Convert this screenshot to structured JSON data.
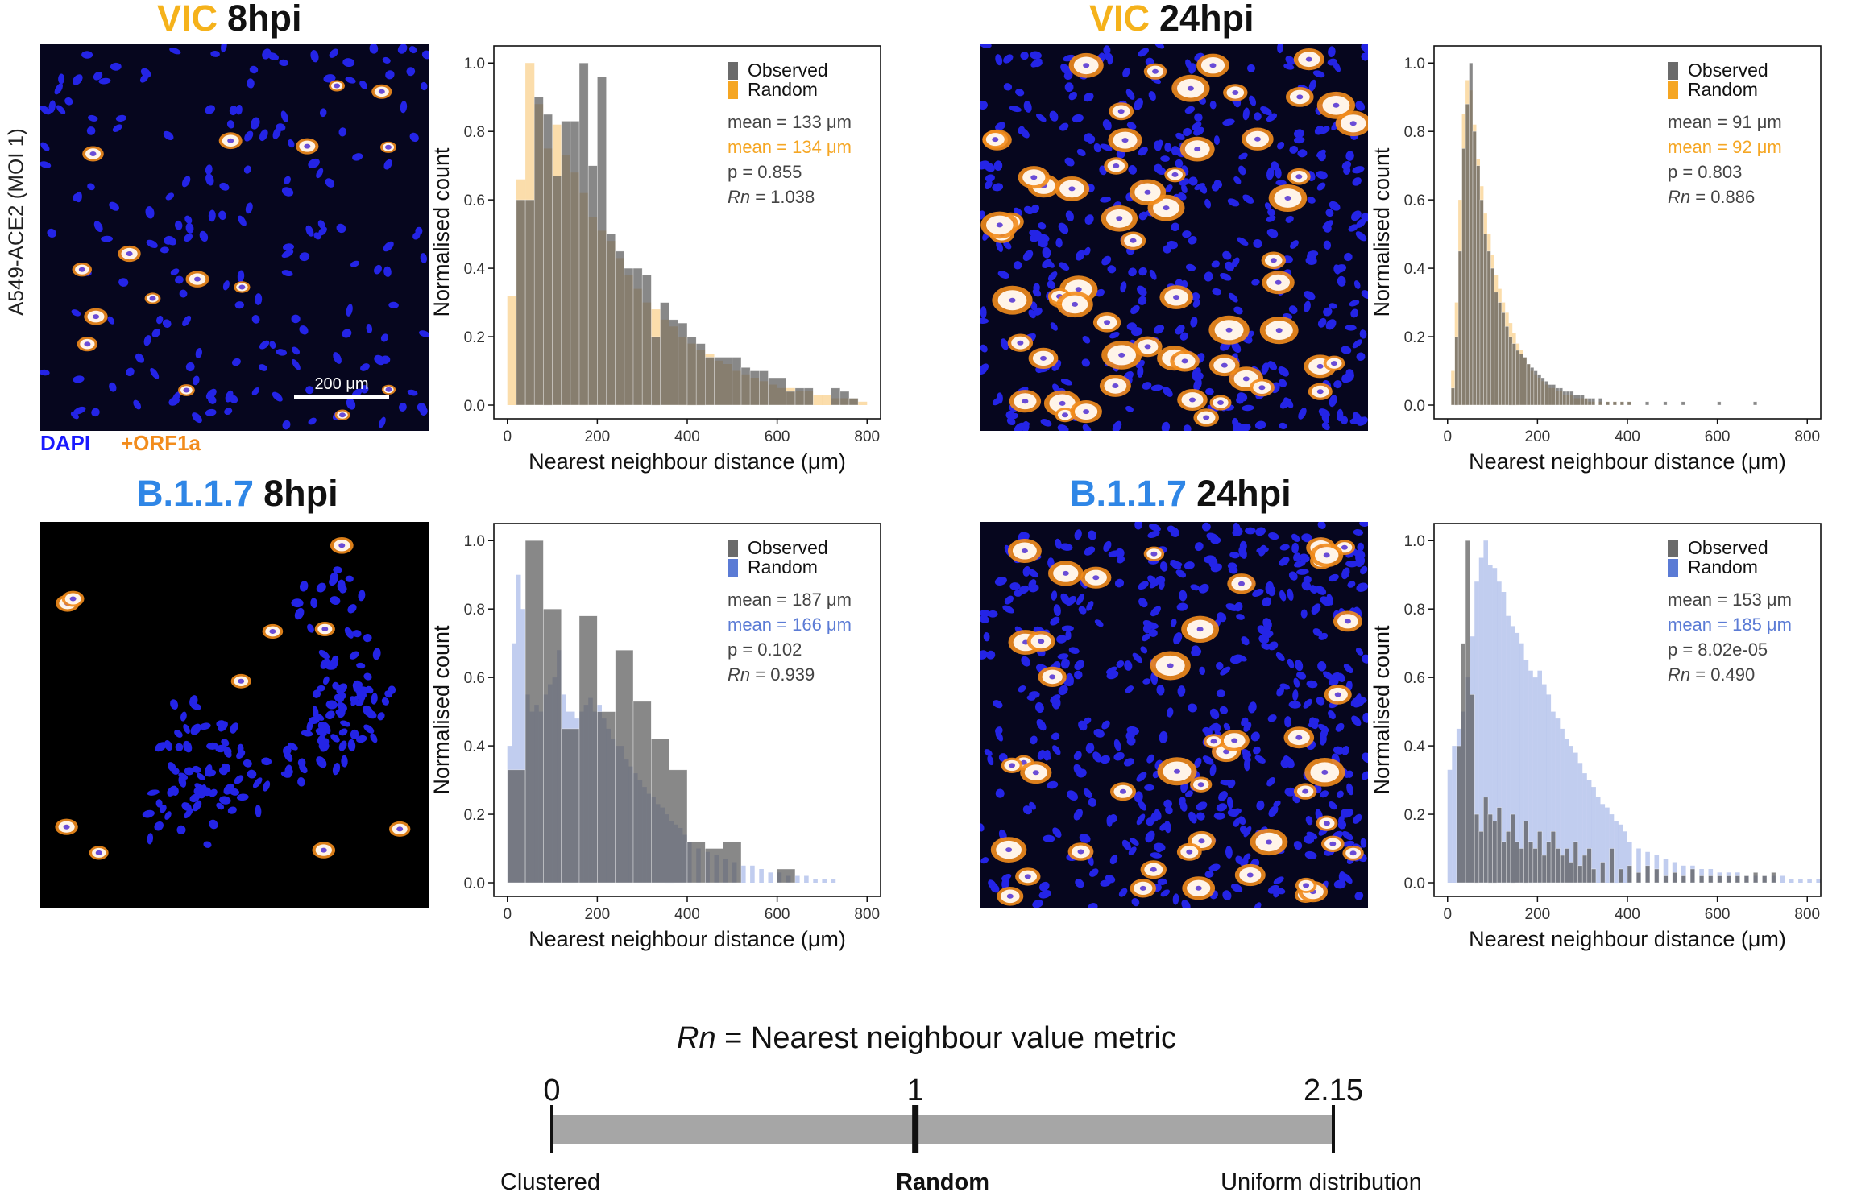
{
  "figure": {
    "row_label": "A549-ACE2 (MOI 1)",
    "scale_bar_label": "200 μm",
    "stains": [
      {
        "label": "DAPI",
        "color": "#1a1aff"
      },
      {
        "label": "+ORF1a",
        "color": "#f28c1c"
      }
    ],
    "colors": {
      "observed": "#6b6b6b",
      "random_vic": "#f5a623",
      "random_b117": "#5b7bd5",
      "vic": "#f5b21b",
      "b117": "#2f86e6",
      "micro_bg": "#05051a"
    }
  },
  "panels": [
    {
      "strain": "VIC",
      "time": "8hpi",
      "strain_color": "#f5b21b"
    },
    {
      "strain": "VIC",
      "time": "24hpi",
      "strain_color": "#f5b21b"
    },
    {
      "strain": "B.1.1.7",
      "time": "8hpi",
      "strain_color": "#2f86e6"
    },
    {
      "strain": "B.1.1.7",
      "time": "24hpi",
      "strain_color": "#2f86e6"
    }
  ],
  "chart_data": [
    {
      "type": "bar",
      "xlabel": "Nearest neighbour distance (μm)",
      "ylabel": "Normalised count",
      "xlim": [
        -30,
        830
      ],
      "ylim": [
        -0.04,
        1.05
      ],
      "xticks": [
        "0",
        "200",
        "400",
        "600",
        "800"
      ],
      "yticks": [
        "0.0",
        "0.2",
        "0.4",
        "0.6",
        "0.8",
        "1.0"
      ],
      "legend": [
        "Observed",
        "Random"
      ],
      "random_color": "#f5a623",
      "stats": [
        {
          "label": "mean",
          "value": "133",
          "unit": "μm",
          "color": "#444444"
        },
        {
          "label": "mean",
          "value": "134",
          "unit": "μm",
          "color": "#f5a623"
        },
        {
          "label": "p",
          "value": "0.855",
          "color": "#444444"
        },
        {
          "label": "Rn",
          "value": "1.038",
          "color": "#444444"
        }
      ],
      "series": [
        {
          "name": "Observed",
          "bin_width": 20,
          "x": [
            20,
            40,
            60,
            80,
            100,
            120,
            140,
            160,
            180,
            200,
            220,
            240,
            260,
            280,
            300,
            320,
            340,
            360,
            380,
            400,
            420,
            440,
            460,
            480,
            500,
            520,
            540,
            560,
            580,
            600,
            620,
            640,
            660,
            680,
            700,
            720,
            740,
            760,
            780
          ],
          "values": [
            0.6,
            0.6,
            0.9,
            0.85,
            0.67,
            0.83,
            0.83,
            1.0,
            0.7,
            0.96,
            0.5,
            0.45,
            0.4,
            0.4,
            0.38,
            0.2,
            0.3,
            0.25,
            0.24,
            0.2,
            0.18,
            0.14,
            0.14,
            0.14,
            0.14,
            0.11,
            0.1,
            0.1,
            0.08,
            0.08,
            0.04,
            0.05,
            0.05,
            0.0,
            0.0,
            0.05,
            0.04,
            0.02,
            0.0
          ]
        },
        {
          "name": "Random",
          "bin_width": 20,
          "x": [
            0,
            20,
            40,
            60,
            80,
            100,
            120,
            140,
            160,
            180,
            200,
            220,
            240,
            260,
            280,
            300,
            320,
            340,
            360,
            380,
            400,
            420,
            440,
            460,
            480,
            500,
            520,
            540,
            560,
            580,
            600,
            620,
            640,
            660,
            680,
            700,
            720,
            740,
            760,
            780
          ],
          "values": [
            0.32,
            0.66,
            1.0,
            0.88,
            0.75,
            0.82,
            0.73,
            0.68,
            0.62,
            0.55,
            0.51,
            0.48,
            0.43,
            0.38,
            0.34,
            0.3,
            0.28,
            0.25,
            0.23,
            0.2,
            0.18,
            0.16,
            0.15,
            0.13,
            0.12,
            0.1,
            0.09,
            0.08,
            0.07,
            0.06,
            0.05,
            0.05,
            0.04,
            0.04,
            0.03,
            0.03,
            0.02,
            0.02,
            0.02,
            0.01
          ]
        }
      ]
    },
    {
      "type": "bar",
      "xlabel": "Nearest neighbour distance (μm)",
      "ylabel": "Normalised count",
      "xlim": [
        -30,
        830
      ],
      "ylim": [
        -0.04,
        1.05
      ],
      "xticks": [
        "0",
        "200",
        "400",
        "600",
        "800"
      ],
      "yticks": [
        "0.0",
        "0.2",
        "0.4",
        "0.6",
        "0.8",
        "1.0"
      ],
      "legend": [
        "Observed",
        "Random"
      ],
      "random_color": "#f5a623",
      "stats": [
        {
          "label": "mean",
          "value": "91",
          "unit": "μm",
          "color": "#444444"
        },
        {
          "label": "mean",
          "value": "92",
          "unit": "μm",
          "color": "#f5a623"
        },
        {
          "label": "p",
          "value": "0.803",
          "color": "#444444"
        },
        {
          "label": "Rn",
          "value": "0.886",
          "color": "#444444"
        }
      ],
      "series": [
        {
          "name": "Observed",
          "bin_width": 8,
          "x": [
            8,
            16,
            24,
            32,
            40,
            48,
            56,
            64,
            72,
            80,
            88,
            96,
            104,
            112,
            120,
            128,
            136,
            144,
            152,
            160,
            168,
            176,
            184,
            192,
            200,
            208,
            216,
            224,
            232,
            240,
            248,
            256,
            264,
            272,
            280,
            288,
            296,
            304,
            312,
            320,
            336,
            352,
            368,
            384,
            400,
            440,
            480,
            520,
            600,
            680
          ],
          "values": [
            0.05,
            0.2,
            0.45,
            0.75,
            0.88,
            1.0,
            0.8,
            0.7,
            0.6,
            0.5,
            0.45,
            0.4,
            0.33,
            0.3,
            0.27,
            0.23,
            0.2,
            0.18,
            0.16,
            0.15,
            0.14,
            0.12,
            0.11,
            0.1,
            0.09,
            0.08,
            0.07,
            0.06,
            0.06,
            0.05,
            0.05,
            0.04,
            0.04,
            0.04,
            0.03,
            0.03,
            0.03,
            0.02,
            0.02,
            0.02,
            0.02,
            0.01,
            0.01,
            0.01,
            0.01,
            0.01,
            0.01,
            0.01,
            0.01,
            0.01
          ]
        },
        {
          "name": "Random",
          "bin_width": 8,
          "x": [
            8,
            16,
            24,
            32,
            40,
            48,
            56,
            64,
            72,
            80,
            88,
            96,
            104,
            112,
            120,
            128,
            136,
            144,
            152,
            160,
            168,
            176,
            184,
            192,
            200,
            208,
            216,
            224,
            232,
            240,
            248,
            256,
            264,
            272,
            280,
            288,
            296,
            304,
            312,
            320,
            336,
            352,
            368,
            384,
            400
          ],
          "values": [
            0.1,
            0.3,
            0.6,
            0.85,
            0.95,
            0.92,
            0.82,
            0.72,
            0.64,
            0.56,
            0.5,
            0.44,
            0.38,
            0.34,
            0.3,
            0.27,
            0.24,
            0.21,
            0.18,
            0.16,
            0.14,
            0.12,
            0.1,
            0.09,
            0.08,
            0.07,
            0.06,
            0.05,
            0.05,
            0.04,
            0.04,
            0.03,
            0.03,
            0.03,
            0.02,
            0.02,
            0.02,
            0.02,
            0.01,
            0.01,
            0.01,
            0.01,
            0.01,
            0.01,
            0.01
          ]
        }
      ]
    },
    {
      "type": "bar",
      "xlabel": "Nearest neighbour distance (μm)",
      "ylabel": "Normalised count",
      "xlim": [
        -30,
        830
      ],
      "ylim": [
        -0.04,
        1.05
      ],
      "xticks": [
        "0",
        "200",
        "400",
        "600",
        "800"
      ],
      "yticks": [
        "0.0",
        "0.2",
        "0.4",
        "0.6",
        "0.8",
        "1.0"
      ],
      "legend": [
        "Observed",
        "Random"
      ],
      "random_color": "#5b7bd5",
      "stats": [
        {
          "label": "mean",
          "value": "187",
          "unit": "μm",
          "color": "#444444"
        },
        {
          "label": "mean",
          "value": "166",
          "unit": "μm",
          "color": "#5b7bd5"
        },
        {
          "label": "p",
          "value": "0.102",
          "color": "#444444"
        },
        {
          "label": "Rn",
          "value": "0.939",
          "color": "#444444"
        }
      ],
      "series": [
        {
          "name": "Observed",
          "bin_width": 40,
          "x": [
            0,
            40,
            80,
            120,
            160,
            200,
            240,
            280,
            320,
            360,
            400,
            440,
            480,
            520,
            560,
            600,
            640
          ],
          "values": [
            0.33,
            1.0,
            0.8,
            0.45,
            0.78,
            0.5,
            0.68,
            0.53,
            0.42,
            0.33,
            0.12,
            0.1,
            0.12,
            0.0,
            0.0,
            0.04,
            0.0
          ]
        },
        {
          "name": "Random",
          "bin_width": 10,
          "x": [
            0,
            10,
            20,
            30,
            40,
            50,
            60,
            70,
            80,
            90,
            100,
            110,
            120,
            130,
            140,
            150,
            160,
            170,
            180,
            190,
            200,
            210,
            220,
            230,
            240,
            250,
            260,
            270,
            280,
            290,
            300,
            310,
            320,
            330,
            340,
            350,
            360,
            370,
            380,
            390,
            400,
            420,
            440,
            460,
            480,
            500,
            520,
            540,
            560,
            580,
            600,
            620,
            640,
            660,
            680,
            700,
            720
          ],
          "values": [
            0.4,
            0.7,
            0.9,
            0.8,
            0.55,
            0.5,
            0.52,
            0.5,
            0.55,
            0.58,
            0.6,
            0.68,
            0.55,
            0.5,
            0.5,
            0.48,
            0.5,
            0.52,
            0.54,
            0.5,
            0.52,
            0.48,
            0.45,
            0.42,
            0.4,
            0.4,
            0.36,
            0.34,
            0.32,
            0.3,
            0.28,
            0.26,
            0.25,
            0.23,
            0.22,
            0.2,
            0.18,
            0.17,
            0.16,
            0.14,
            0.12,
            0.1,
            0.09,
            0.08,
            0.07,
            0.06,
            0.05,
            0.05,
            0.04,
            0.03,
            0.03,
            0.02,
            0.02,
            0.02,
            0.01,
            0.01,
            0.01
          ]
        }
      ]
    },
    {
      "type": "bar",
      "xlabel": "Nearest neighbour distance (μm)",
      "ylabel": "Normalised count",
      "xlim": [
        -30,
        830
      ],
      "ylim": [
        -0.04,
        1.05
      ],
      "xticks": [
        "0",
        "200",
        "400",
        "600",
        "800"
      ],
      "yticks": [
        "0.0",
        "0.2",
        "0.4",
        "0.6",
        "0.8",
        "1.0"
      ],
      "legend": [
        "Observed",
        "Random"
      ],
      "random_color": "#5b7bd5",
      "stats": [
        {
          "label": "mean",
          "value": "153",
          "unit": "μm",
          "color": "#444444"
        },
        {
          "label": "mean",
          "value": "185",
          "unit": "μm",
          "color": "#5b7bd5"
        },
        {
          "label": "p",
          "value": "8.02e-05",
          "color": "#444444"
        },
        {
          "label": "Rn",
          "value": "0.490",
          "color": "#444444"
        }
      ],
      "series": [
        {
          "name": "Observed",
          "bin_width": 10,
          "x": [
            20,
            30,
            40,
            50,
            60,
            70,
            80,
            90,
            100,
            110,
            120,
            130,
            140,
            150,
            160,
            170,
            180,
            190,
            200,
            210,
            220,
            230,
            240,
            250,
            260,
            270,
            280,
            290,
            300,
            310,
            320,
            340,
            360,
            380,
            400,
            420,
            440,
            460,
            480,
            500,
            520,
            540,
            560,
            580,
            600,
            620,
            640,
            660,
            680,
            700,
            720
          ],
          "values": [
            0.4,
            0.7,
            1.0,
            0.55,
            0.2,
            0.15,
            0.25,
            0.2,
            0.18,
            0.22,
            0.12,
            0.15,
            0.2,
            0.12,
            0.1,
            0.18,
            0.12,
            0.1,
            0.15,
            0.08,
            0.12,
            0.15,
            0.1,
            0.08,
            0.1,
            0.06,
            0.12,
            0.05,
            0.08,
            0.1,
            0.04,
            0.06,
            0.1,
            0.04,
            0.05,
            0.03,
            0.05,
            0.04,
            0.02,
            0.03,
            0.02,
            0.04,
            0.02,
            0.02,
            0.02,
            0.02,
            0.02,
            0.02,
            0.03,
            0.02,
            0.03
          ]
        },
        {
          "name": "Random",
          "bin_width": 10,
          "x": [
            0,
            10,
            20,
            30,
            40,
            50,
            60,
            70,
            80,
            90,
            100,
            110,
            120,
            130,
            140,
            150,
            160,
            170,
            180,
            190,
            200,
            210,
            220,
            230,
            240,
            250,
            260,
            270,
            280,
            290,
            300,
            310,
            320,
            330,
            340,
            350,
            360,
            370,
            380,
            390,
            400,
            420,
            440,
            460,
            480,
            500,
            520,
            540,
            560,
            580,
            600,
            620,
            640,
            660,
            680,
            700,
            720,
            740,
            760,
            780,
            800,
            820
          ],
          "values": [
            0.33,
            0.4,
            0.45,
            0.5,
            0.6,
            0.72,
            0.88,
            0.95,
            1.0,
            0.93,
            0.92,
            0.88,
            0.85,
            0.78,
            0.75,
            0.73,
            0.7,
            0.65,
            0.62,
            0.6,
            0.62,
            0.58,
            0.55,
            0.5,
            0.48,
            0.45,
            0.42,
            0.4,
            0.38,
            0.35,
            0.32,
            0.3,
            0.28,
            0.25,
            0.23,
            0.22,
            0.2,
            0.18,
            0.17,
            0.15,
            0.12,
            0.1,
            0.09,
            0.08,
            0.07,
            0.06,
            0.05,
            0.05,
            0.04,
            0.04,
            0.03,
            0.03,
            0.03,
            0.02,
            0.02,
            0.02,
            0.02,
            0.02,
            0.01,
            0.01,
            0.01,
            0.01
          ]
        }
      ]
    }
  ],
  "rn_scale": {
    "title_var": "Rn",
    "title_rest": " = Nearest neighbour value metric",
    "ticks": [
      {
        "value": 0,
        "label": "0"
      },
      {
        "value": 1,
        "label": "1"
      },
      {
        "value": 2.15,
        "label": "2.15"
      }
    ],
    "range": [
      0,
      2.15
    ],
    "labels": [
      {
        "text": "Clustered",
        "bold": false
      },
      {
        "text": "Random",
        "bold": true
      },
      {
        "text": "Uniform distribution",
        "bold": false
      }
    ]
  }
}
